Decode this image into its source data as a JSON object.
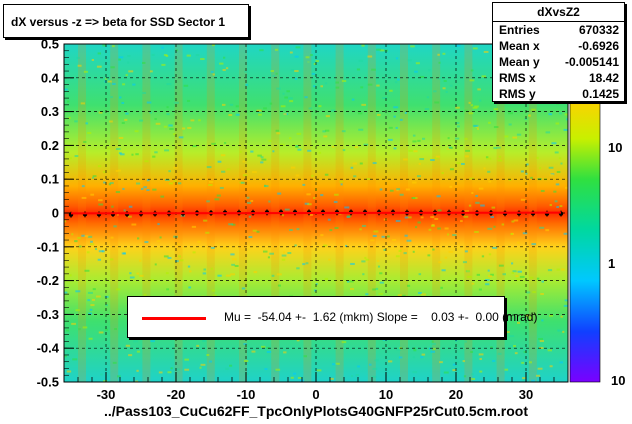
{
  "title": "dX versus -z  => beta for SSD Sector 1",
  "stats": {
    "name": "dXvsZ2",
    "rows": [
      {
        "label": "Entries",
        "value": "670332"
      },
      {
        "label": "Mean x",
        "value": "-0.6926"
      },
      {
        "label": "Mean y",
        "value": "-0.005141"
      },
      {
        "label": "RMS x",
        "value": "18.42"
      },
      {
        "label": "RMS y",
        "value": "0.1425"
      }
    ]
  },
  "legend": {
    "text": "Mu =  -54.04 +-  1.62 (mkm) Slope =    0.03 +-  0.00 (mrad)",
    "line_color": "#ff0000"
  },
  "xlabel": "../Pass103_CuCu62FF_TpcOnlyPlotsG40GNFP25rCut0.5cm.root",
  "colorbar": {
    "labels": [
      "10",
      "1",
      "10"
    ]
  },
  "chart_data": {
    "type": "heatmap",
    "title": "dX versus -z  => beta for SSD Sector 1",
    "xlabel": "../Pass103_CuCu62FF_TpcOnlyPlotsG40GNFP25rCut0.5cm.root",
    "ylabel": "",
    "xlim": [
      -36,
      36
    ],
    "ylim": [
      -0.5,
      0.5
    ],
    "x_ticks": [
      -30,
      -20,
      -10,
      0,
      10,
      20,
      30
    ],
    "y_ticks": [
      -0.5,
      -0.4,
      -0.3,
      -0.2,
      -0.1,
      0,
      0.1,
      0.2,
      0.3,
      0.4,
      0.5
    ],
    "x_tick_labels": [
      "-30",
      "-20",
      "-10",
      "0",
      "10",
      "20",
      "30"
    ],
    "y_tick_labels": [
      "-0.5",
      "-0.4",
      "-0.3",
      "-0.2",
      "-0.1",
      "0",
      "0.1",
      "0.2",
      "0.3",
      "0.4",
      "0.5"
    ],
    "grid": true,
    "log_z": true,
    "colorbar_labels": [
      "10",
      "1",
      "10"
    ],
    "fit_line": {
      "intercept": -0.054,
      "slope": 3e-05,
      "color": "#ff0000"
    },
    "profile_points": [
      {
        "x": -35,
        "y": -0.005
      },
      {
        "x": -33,
        "y": -0.004
      },
      {
        "x": -31,
        "y": -0.004
      },
      {
        "x": -29,
        "y": -0.003
      },
      {
        "x": -27,
        "y": -0.003
      },
      {
        "x": -25,
        "y": -0.002
      },
      {
        "x": -23,
        "y": -0.002
      },
      {
        "x": -21,
        "y": -0.001
      },
      {
        "x": -19,
        "y": -0.001
      },
      {
        "x": -17,
        "y": 0.0
      },
      {
        "x": -15,
        "y": 0.0
      },
      {
        "x": -13,
        "y": 0.001
      },
      {
        "x": -11,
        "y": 0.001
      },
      {
        "x": -9,
        "y": 0.001
      },
      {
        "x": -7,
        "y": 0.002
      },
      {
        "x": -5,
        "y": 0.002
      },
      {
        "x": -3,
        "y": 0.002
      },
      {
        "x": -1,
        "y": 0.002
      },
      {
        "x": 1,
        "y": 0.002
      },
      {
        "x": 3,
        "y": 0.002
      },
      {
        "x": 5,
        "y": 0.002
      },
      {
        "x": 7,
        "y": 0.002
      },
      {
        "x": 9,
        "y": 0.002
      },
      {
        "x": 11,
        "y": 0.002
      },
      {
        "x": 13,
        "y": 0.001
      },
      {
        "x": 15,
        "y": 0.001
      },
      {
        "x": 17,
        "y": 0.001
      },
      {
        "x": 19,
        "y": 0.001
      },
      {
        "x": 21,
        "y": 0.0
      },
      {
        "x": 23,
        "y": 0.0
      },
      {
        "x": 25,
        "y": 0.0
      },
      {
        "x": 27,
        "y": -0.001
      },
      {
        "x": 29,
        "y": -0.001
      },
      {
        "x": 31,
        "y": -0.001
      },
      {
        "x": 33,
        "y": -0.002
      },
      {
        "x": 35,
        "y": -0.002
      }
    ]
  }
}
